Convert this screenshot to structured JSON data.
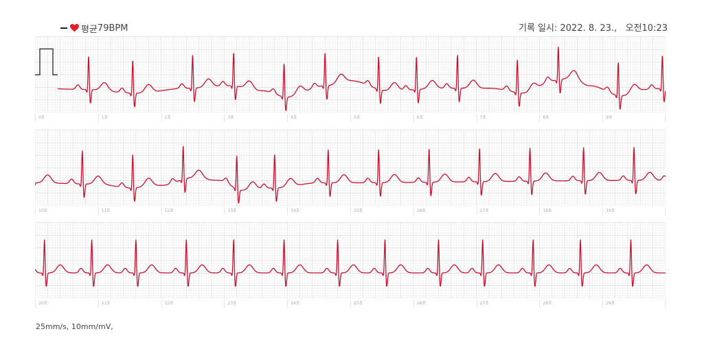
{
  "header": {
    "avg_label": "평균",
    "avg_value": "79BPM",
    "record_label": "기록 일시:",
    "record_date": "2022. 8. 23.,",
    "record_time": "오전10:23"
  },
  "footer": {
    "settings": "25mm/s, 10mm/mV,"
  },
  "colors": {
    "trace": "#c8102e",
    "grid_minor": "#eeeeee",
    "grid_major": "#d6d6d6",
    "calibration": "#333333"
  },
  "chart_data": {
    "type": "line",
    "title": "",
    "xlabel": "",
    "ylabel": "",
    "units": {
      "x": "초",
      "y": "mV"
    },
    "paper_speed_mm_per_s": 25,
    "gain_mm_per_mV": 10,
    "heart_rate_bpm": 79,
    "duration_s": 30,
    "strips": [
      {
        "start_s": 0,
        "end_s": 10,
        "second_labels": [
          "0초",
          "1초",
          "2초",
          "3초",
          "4초",
          "5초",
          "6초",
          "7초",
          "8초",
          "9초"
        ]
      },
      {
        "start_s": 10,
        "end_s": 20,
        "second_labels": [
          "10초",
          "11초",
          "12초",
          "13초",
          "14초",
          "15초",
          "16초",
          "17초",
          "18초",
          "19초"
        ]
      },
      {
        "start_s": 20,
        "end_s": 30,
        "second_labels": [
          "20초",
          "21초",
          "22초",
          "23초",
          "24초",
          "25초",
          "26초",
          "27초",
          "28초",
          "29초"
        ]
      }
    ],
    "calibration_pulse_mV": 1,
    "beats_s": [
      0.85,
      1.55,
      2.5,
      3.15,
      3.95,
      4.6,
      5.45,
      6.05,
      6.7,
      7.65,
      8.3,
      9.25,
      9.95,
      10.75,
      11.55,
      12.35,
      13.2,
      13.8,
      14.65,
      15.45,
      16.25,
      17.05,
      17.85,
      18.7,
      19.5,
      20.15,
      20.9,
      21.6,
      22.4,
      23.15,
      23.95,
      24.8,
      25.55,
      26.4,
      27.1,
      27.9,
      28.65,
      29.45
    ],
    "baseline_wander_mV": [
      [
        0.0,
        -0.1
      ],
      [
        0.8,
        -0.15
      ],
      [
        1.6,
        -0.3
      ],
      [
        2.4,
        -0.1
      ],
      [
        3.1,
        0.0
      ],
      [
        3.6,
        -0.2
      ],
      [
        4.0,
        -0.45
      ],
      [
        4.6,
        0.0
      ],
      [
        5.0,
        0.2
      ],
      [
        5.6,
        -0.2
      ],
      [
        6.5,
        -0.1
      ],
      [
        7.2,
        -0.1
      ],
      [
        7.8,
        -0.3
      ],
      [
        8.2,
        0.2
      ],
      [
        8.5,
        0.3
      ],
      [
        8.8,
        0.0
      ],
      [
        9.3,
        -0.4
      ],
      [
        9.7,
        -0.15
      ],
      [
        10.0,
        -0.1
      ],
      [
        11.0,
        -0.15
      ],
      [
        11.5,
        -0.3
      ],
      [
        12.0,
        -0.2
      ],
      [
        12.5,
        0.1
      ],
      [
        12.9,
        0.0
      ],
      [
        13.3,
        -0.4
      ],
      [
        13.8,
        -0.3
      ],
      [
        14.5,
        -0.1
      ],
      [
        20.0,
        0.0
      ],
      [
        30.0,
        0.0
      ]
    ]
  }
}
